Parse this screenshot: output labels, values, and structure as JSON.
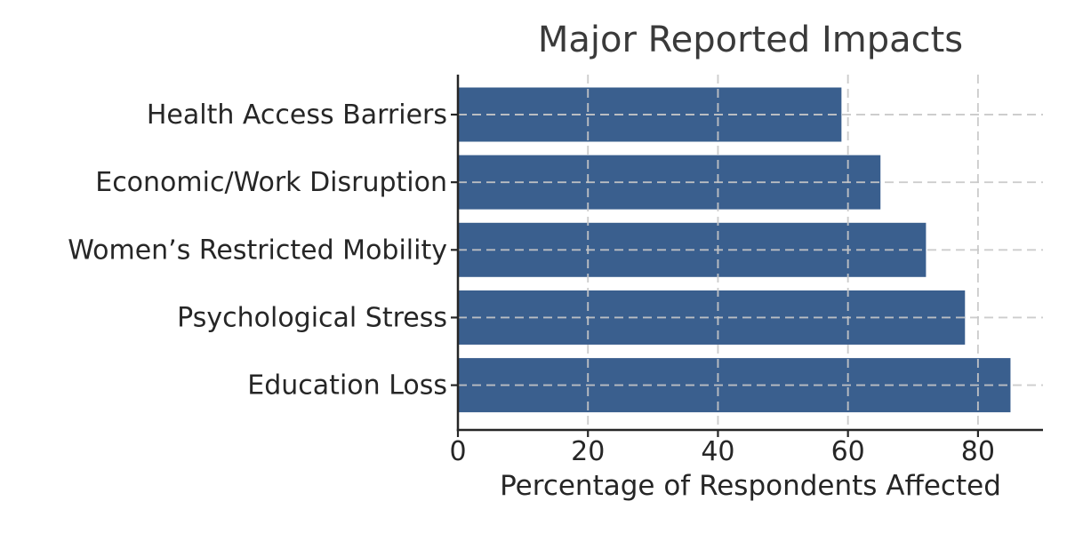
{
  "chart_data": {
    "type": "bar",
    "orientation": "horizontal",
    "title": "Major Reported Impacts",
    "xlabel": "Percentage of Respondents Affected",
    "ylabel": "",
    "categories": [
      "Health Access Barriers",
      "Economic/Work Disruption",
      "Women’s Restricted Mobility",
      "Psychological Stress",
      "Education Loss"
    ],
    "values": [
      59,
      65,
      72,
      78,
      85
    ],
    "xlim": [
      0,
      90
    ],
    "xticks": [
      0,
      20,
      40,
      60,
      80
    ],
    "grid": "dashed gridlines on both axes, drawn over bars",
    "legend": "none",
    "colors": {
      "bar": "#3a5f8e",
      "title_text": "#3a3a3a",
      "axis_text": "#262626",
      "spine": "#262626",
      "grid": "#c8c8c8",
      "background": "#ffffff"
    }
  }
}
